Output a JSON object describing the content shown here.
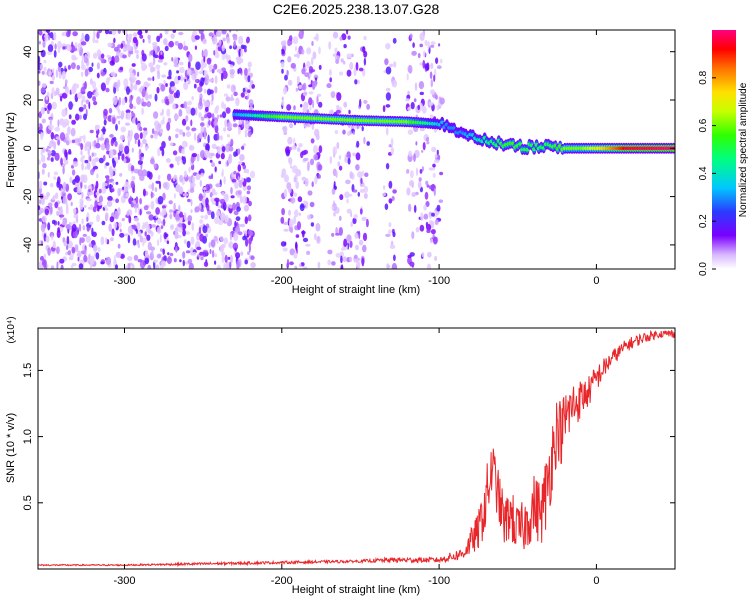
{
  "title": "C2E6.2025.238.13.07.G28",
  "colors": {
    "line": "#e8262a",
    "axis": "#000000"
  },
  "chart_data": [
    {
      "type": "heatmap",
      "xlabel": "Height of straight line (km)",
      "ylabel": "Frequency (Hz)",
      "xlim": [
        -355,
        50
      ],
      "ylim": [
        -50,
        49
      ],
      "xticks": [
        -300,
        -200,
        -100,
        0
      ],
      "yticks": [
        -40,
        -20,
        0,
        20,
        40
      ],
      "colorbar": {
        "label": "Normalized spectral amplitude",
        "range": [
          0,
          1
        ],
        "ticks": [
          "0.0",
          "0.2",
          "0.4",
          "0.6",
          "0.8"
        ],
        "tick_values": [
          0,
          0.2,
          0.4,
          0.6,
          0.8
        ]
      },
      "ridge": {
        "x": [
          -230,
          -200,
          -150,
          -120,
          -100,
          -95,
          -85,
          -70,
          -55,
          -45,
          -30,
          -20,
          -10,
          0,
          20,
          50
        ],
        "frequency": [
          14,
          13,
          11.5,
          11,
          10,
          9,
          6,
          3,
          1,
          0.5,
          0.5,
          0,
          0,
          0,
          0,
          0
        ],
        "amplitude": [
          0.3,
          0.6,
          0.6,
          0.6,
          0.35,
          0.3,
          0.3,
          0.45,
          0.55,
          0.5,
          0.5,
          0.6,
          0.6,
          0.7,
          0.95,
          1.0
        ]
      }
    },
    {
      "type": "line",
      "xlabel": "Height of straight line (km)",
      "ylabel": "SNR (10 * v/v)",
      "multiplier": "(x10⁴)",
      "xlim": [
        -355,
        50
      ],
      "ylim": [
        0,
        1.82
      ],
      "xticks": [
        -300,
        -200,
        -100,
        0
      ],
      "yticks": [
        0.5,
        1.0,
        1.5
      ],
      "ytick_labels": [
        "0.5",
        "1.0",
        "1.5"
      ],
      "series": [
        {
          "x": [
            -355,
            -300,
            -250,
            -200,
            -150,
            -130,
            -100,
            -85,
            -75,
            -70,
            -66,
            -62,
            -58,
            -55,
            -50,
            -45,
            -40,
            -35,
            -32,
            -28,
            -25,
            -22,
            -20,
            -15,
            -10,
            -5,
            0,
            10,
            20,
            30,
            40,
            50
          ],
          "y": [
            0.03,
            0.03,
            0.04,
            0.05,
            0.06,
            0.07,
            0.07,
            0.12,
            0.3,
            0.55,
            0.8,
            0.55,
            0.35,
            0.45,
            0.3,
            0.35,
            0.5,
            0.45,
            0.6,
            0.9,
            1.1,
            1.05,
            1.15,
            1.25,
            1.3,
            1.35,
            1.45,
            1.6,
            1.7,
            1.75,
            1.78,
            1.78
          ],
          "noise": [
            0.005,
            0.005,
            0.01,
            0.01,
            0.01,
            0.02,
            0.02,
            0.05,
            0.15,
            0.25,
            0.2,
            0.2,
            0.2,
            0.2,
            0.2,
            0.2,
            0.25,
            0.25,
            0.3,
            0.3,
            0.25,
            0.25,
            0.25,
            0.2,
            0.15,
            0.12,
            0.1,
            0.06,
            0.05,
            0.04,
            0.03,
            0.03
          ]
        }
      ]
    }
  ]
}
